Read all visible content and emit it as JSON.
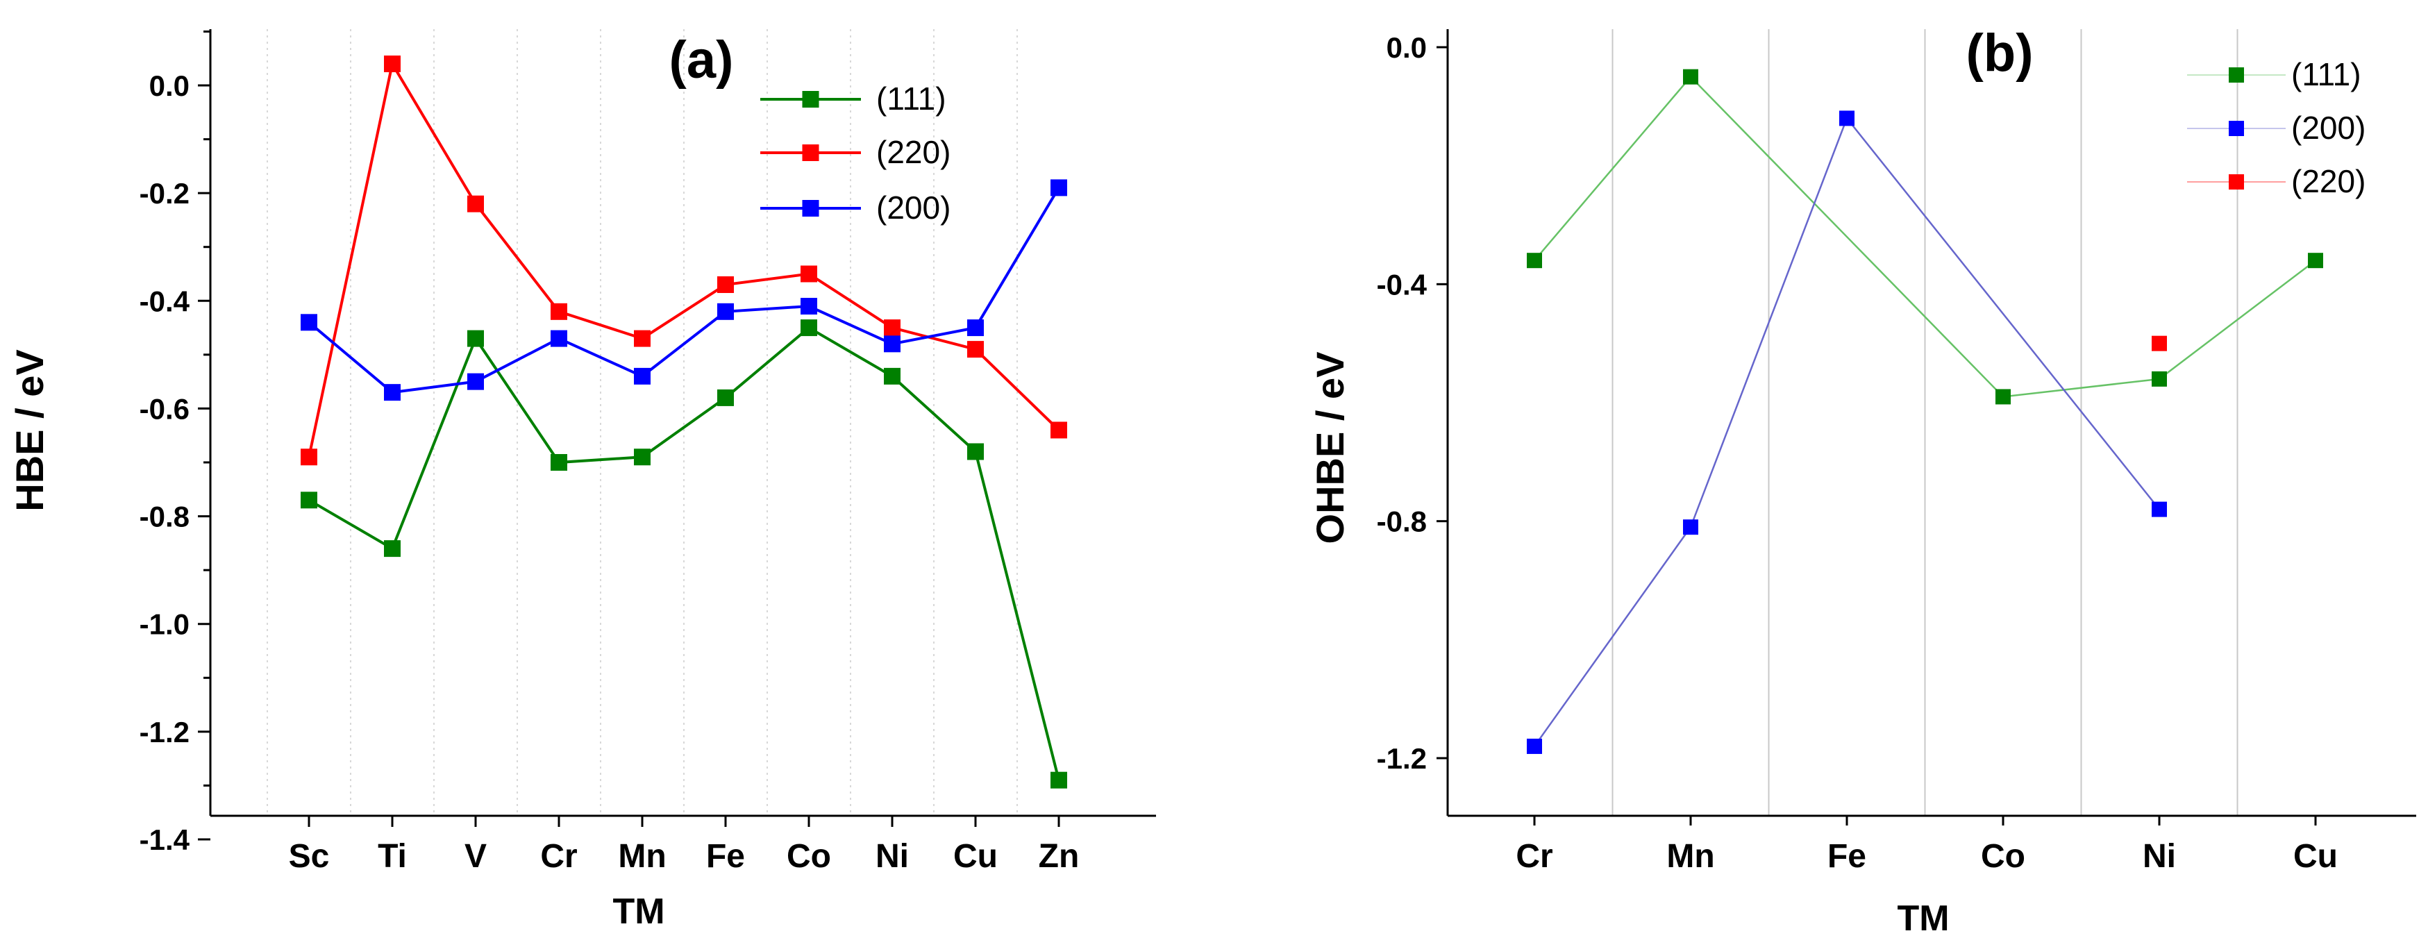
{
  "colors": {
    "s111_a": "#008000",
    "s220_a": "#ff0000",
    "s200_a": "#0000ff",
    "s111_b": "#008000",
    "s200_b": "#0000ff",
    "s220_b": "#ff0000",
    "line111_b": "#66c266",
    "line200_b": "#6666cc"
  },
  "chart_data": [
    {
      "type": "line",
      "panel_label": "(a)",
      "xlabel": "TM",
      "ylabel": "HBE / eV",
      "categories": [
        "Sc",
        "Ti",
        "V",
        "Cr",
        "Mn",
        "Fe",
        "Co",
        "Ni",
        "Cu",
        "Zn"
      ],
      "ylim": [
        -1.4,
        0.1
      ],
      "yticks": [
        {
          "value": 0.0,
          "label": "0.0"
        },
        {
          "value": -0.2,
          "label": "-0.2"
        },
        {
          "value": -0.4,
          "label": "-0.4"
        },
        {
          "value": -0.6,
          "label": "-0.6"
        },
        {
          "value": -0.8,
          "label": "-0.8"
        },
        {
          "value": -1.0,
          "label": "-1.0"
        },
        {
          "value": -1.2,
          "label": "-1.2"
        },
        {
          "value": -1.4,
          "label": "-1.4"
        }
      ],
      "legend_position": "top-right",
      "series": [
        {
          "name": "(111)",
          "color_key": "s111_a",
          "values": [
            -0.77,
            -0.86,
            -0.47,
            -0.7,
            -0.69,
            -0.58,
            -0.45,
            -0.54,
            -0.68,
            -1.29
          ]
        },
        {
          "name": "(220)",
          "color_key": "s220_a",
          "values": [
            -0.69,
            0.04,
            -0.22,
            -0.42,
            -0.47,
            -0.37,
            -0.35,
            -0.45,
            -0.49,
            -0.64
          ]
        },
        {
          "name": "(200)",
          "color_key": "s200_a",
          "values": [
            -0.44,
            -0.57,
            -0.55,
            -0.47,
            -0.54,
            -0.42,
            -0.41,
            -0.48,
            -0.45,
            -0.19
          ]
        }
      ]
    },
    {
      "type": "line",
      "panel_label": "(b)",
      "xlabel": "TM",
      "ylabel": "OHBE / eV",
      "categories": [
        "Cr",
        "Mn",
        "Fe",
        "Co",
        "Ni",
        "Cu"
      ],
      "ylim": [
        -1.3,
        0.0
      ],
      "yticks": [
        {
          "value": 0.0,
          "label": "0.0"
        },
        {
          "value": -0.4,
          "label": "-0.4"
        },
        {
          "value": -0.8,
          "label": "-0.8"
        },
        {
          "value": -1.2,
          "label": "-1.2"
        }
      ],
      "legend_position": "top-right",
      "series": [
        {
          "name": "(111)",
          "color_key": "s111_b",
          "line_color_key": "line111_b",
          "values": [
            -0.36,
            -0.05,
            null,
            -0.59,
            -0.56,
            -0.36
          ]
        },
        {
          "name": "(200)",
          "color_key": "s200_b",
          "line_color_key": "line200_b",
          "values": [
            -1.18,
            -0.81,
            -0.12,
            null,
            -0.78,
            null
          ]
        },
        {
          "name": "(220)",
          "color_key": "s220_b",
          "line_color_key": "s220_b",
          "values": [
            null,
            null,
            null,
            null,
            -0.5,
            null
          ],
          "markers_only": true
        }
      ]
    }
  ]
}
